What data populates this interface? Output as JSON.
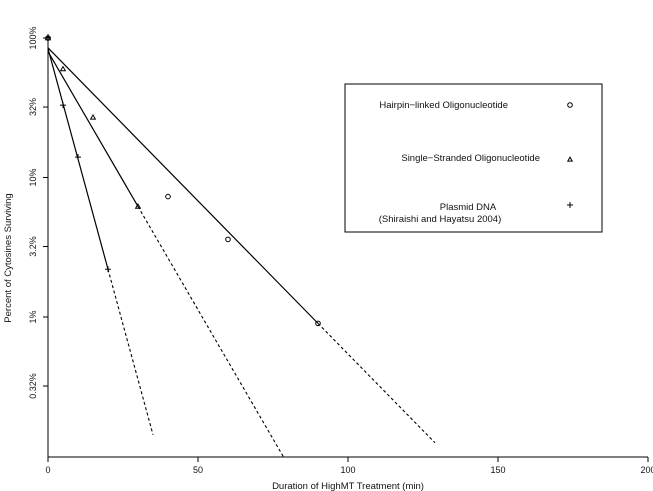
{
  "chart_data": {
    "type": "line",
    "xlabel": "Duration of HighMT Treatment (min)",
    "ylabel": "Percent of Cytosines Surviving",
    "yscale": "log",
    "xlim": [
      0,
      200
    ],
    "ylim": [
      0.1,
      100
    ],
    "x_ticks": [
      0,
      50,
      100,
      150,
      200
    ],
    "x_tick_labels": [
      "0",
      "50",
      "100",
      "150",
      "200"
    ],
    "y_ticks": [
      100,
      32,
      10,
      3.2,
      1,
      0.32
    ],
    "y_tick_labels": [
      "100%",
      "32%",
      "10%",
      "3.2%",
      "1%",
      "0.32%"
    ],
    "grid": false,
    "legend_position": "upper-right, boxed",
    "series": [
      {
        "name": "Hairpin−linked Oligonucleotide",
        "marker": "circle",
        "points": [
          {
            "x": 0,
            "y": 100
          },
          {
            "x": 40,
            "y": 7.3
          },
          {
            "x": 60,
            "y": 3.6
          },
          {
            "x": 90,
            "y": 0.9
          }
        ],
        "fit": {
          "x0": 0,
          "y0": 85,
          "x_end_solid": 90,
          "x_end_dashed": 129
        }
      },
      {
        "name": "Single−Stranded Oligonucleotide",
        "marker": "triangle",
        "points": [
          {
            "x": 0,
            "y": 100
          },
          {
            "x": 5,
            "y": 60
          },
          {
            "x": 15,
            "y": 27
          },
          {
            "x": 30,
            "y": 6.2
          }
        ],
        "fit": {
          "x0": 0,
          "y0": 80,
          "x_end_solid": 30,
          "x_end_dashed": 80
        }
      },
      {
        "name": "Plasmid DNA",
        "name_line2": "(Shiraishi and Hayatsu 2004)",
        "marker": "plus",
        "points": [
          {
            "x": 0,
            "y": 100
          },
          {
            "x": 5,
            "y": 33
          },
          {
            "x": 10,
            "y": 14
          },
          {
            "x": 20,
            "y": 2.2
          }
        ],
        "fit": {
          "x0": 0,
          "y0": 84,
          "x_end_solid": 20,
          "x_end_dashed": 35
        }
      }
    ]
  }
}
